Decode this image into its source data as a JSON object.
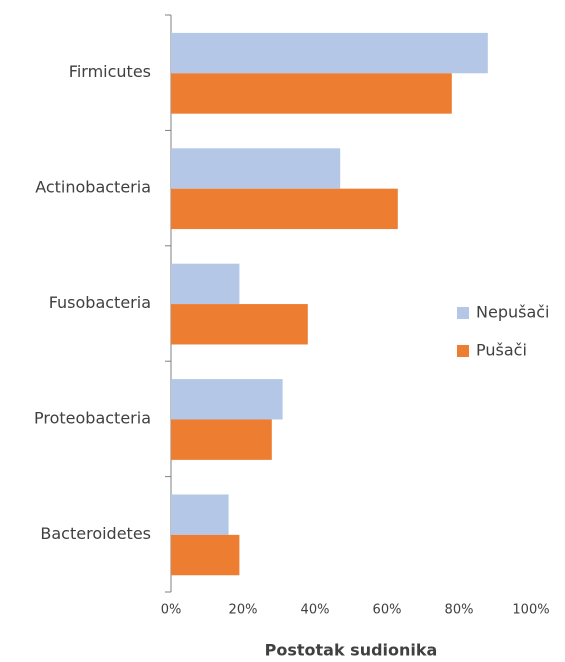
{
  "chart_data": {
    "type": "barh",
    "x_label": "Postotak sudionika",
    "categories": [
      "Firmicutes",
      "Actinobacteria",
      "Fusobacteria",
      "Proteobacteria",
      "Bacteroidetes"
    ],
    "series": [
      {
        "name": "Nepušači",
        "color": "#b4c7e7",
        "values": [
          88,
          47,
          19,
          31,
          16
        ]
      },
      {
        "name": "Pušači",
        "color": "#ed7d31",
        "values": [
          78,
          63,
          38,
          28,
          19
        ]
      }
    ],
    "xlim": [
      0,
      100
    ],
    "xticks": [
      {
        "value": 0,
        "label": "0%"
      },
      {
        "value": 20,
        "label": "20%"
      },
      {
        "value": 40,
        "label": "40%"
      },
      {
        "value": 60,
        "label": "60%"
      },
      {
        "value": 80,
        "label": "80%"
      },
      {
        "value": 100,
        "label": "100%"
      }
    ],
    "grid": false,
    "legend": "right"
  }
}
